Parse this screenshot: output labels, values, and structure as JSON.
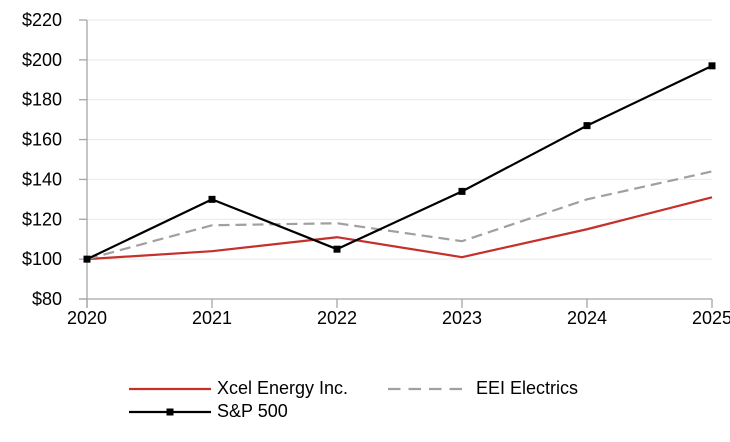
{
  "chart_data": {
    "type": "line",
    "title": "",
    "x_labels": [
      "2020",
      "2021",
      "2022",
      "2023",
      "2024",
      "2025"
    ],
    "y_tick_prefix": "$",
    "y_ticks": [
      "$220",
      "$200",
      "$180",
      "$160",
      "$140",
      "$120",
      "$100",
      "$80"
    ],
    "ylim": [
      80,
      220
    ],
    "y_tick_step": 20,
    "grid": "horizontal-only",
    "legend_position": "bottom",
    "series": [
      {
        "name": "Xcel Energy Inc.",
        "values": [
          100,
          104,
          111,
          101,
          115,
          131
        ],
        "color": "#c5302b",
        "style": "solid",
        "marker": "none"
      },
      {
        "name": "EEI Electrics",
        "values": [
          100,
          117,
          118,
          109,
          130,
          144
        ],
        "color": "#a0a0a0",
        "style": "dashed",
        "marker": "none"
      },
      {
        "name": "S&P 500",
        "values": [
          100,
          130,
          105,
          134,
          167,
          197
        ],
        "color": "#000000",
        "style": "solid",
        "marker": "square"
      }
    ],
    "axis_color": "#a6a6a6",
    "grid_color": "#e9e9e9",
    "text_color": "#000000"
  }
}
